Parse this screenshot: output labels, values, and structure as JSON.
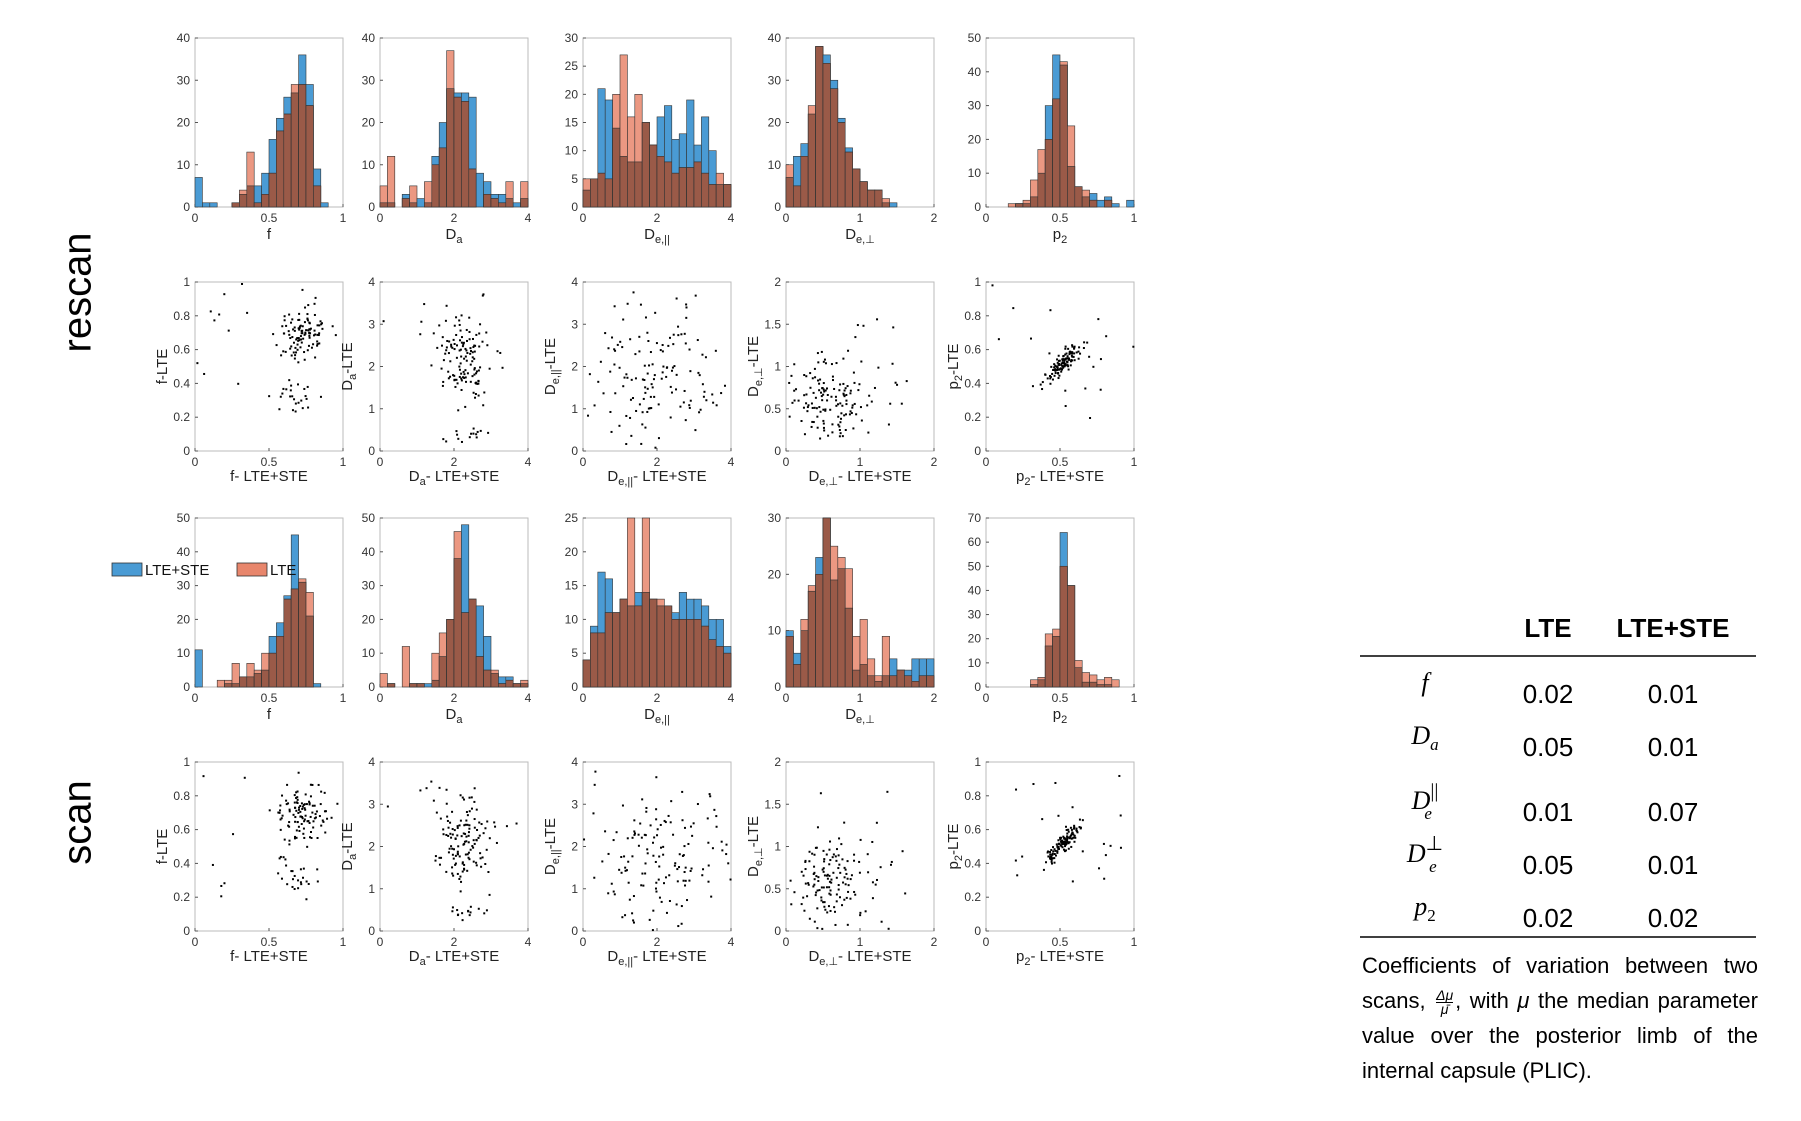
{
  "row_labels": {
    "rescan": "rescan",
    "scan": "scan"
  },
  "legend": [
    {
      "label": "LTE+STE",
      "color": "#4a9bd4"
    },
    {
      "label": "LTE",
      "color": "#e8866c"
    }
  ],
  "colors": {
    "ste": "#4a9bd4",
    "lte": "#e8866c",
    "overlap": "#9a5a48"
  },
  "table": {
    "headers": [
      "LTE",
      "LTE+STE"
    ],
    "rows": [
      {
        "param": "f",
        "lte": "0.02",
        "ste": "0.01"
      },
      {
        "param": "D_a",
        "lte": "0.05",
        "ste": "0.01"
      },
      {
        "param": "D_e^||",
        "lte": "0.01",
        "ste": "0.07"
      },
      {
        "param": "D_e^⊥",
        "lte": "0.05",
        "ste": "0.01"
      },
      {
        "param": "p_2",
        "lte": "0.02",
        "ste": "0.02"
      }
    ]
  },
  "caption": {
    "part1": "Coefficients of variation between two scans,",
    "part2": ", with",
    "part3": "the median parameter value over the posterior limb of the internal capsule (PLIC).",
    "frac_num": "Δμ",
    "frac_den": "μ̄",
    "mu": "μ"
  },
  "chart_data": [
    {
      "type": "bar",
      "group": "rescan",
      "param": "f",
      "xlabel": "f",
      "xlim": [
        0,
        1
      ],
      "ylim": [
        0,
        40
      ],
      "xticks": [
        0,
        0.5,
        1
      ],
      "yticks": [
        0,
        10,
        20,
        30,
        40
      ],
      "bins": 20,
      "series": [
        {
          "name": "LTE+STE",
          "values": [
            7,
            1,
            1,
            0,
            0,
            1,
            3,
            5,
            5,
            8,
            16,
            21,
            26,
            27,
            36,
            29,
            9,
            1,
            0,
            0
          ]
        },
        {
          "name": "LTE",
          "values": [
            0,
            0,
            0,
            0,
            0,
            1,
            4,
            13,
            1,
            3,
            8,
            18,
            22,
            29,
            29,
            24,
            5,
            0,
            0,
            0
          ]
        }
      ]
    },
    {
      "type": "bar",
      "group": "rescan",
      "param": "Da",
      "xlabel": "D_a",
      "xlim": [
        0,
        4
      ],
      "ylim": [
        0,
        40
      ],
      "xticks": [
        0,
        2,
        4
      ],
      "yticks": [
        0,
        10,
        20,
        30,
        40
      ],
      "bins": 20,
      "series": [
        {
          "name": "LTE+STE",
          "values": [
            1,
            1,
            0,
            3,
            1,
            2,
            1,
            12,
            20,
            28,
            27,
            27,
            26,
            8,
            6,
            3,
            3,
            2,
            1,
            2
          ]
        },
        {
          "name": "LTE",
          "values": [
            5,
            12,
            0,
            2,
            5,
            0,
            6,
            10,
            14,
            37,
            26,
            25,
            9,
            0,
            3,
            2,
            1,
            6,
            0,
            6
          ]
        }
      ]
    },
    {
      "type": "bar",
      "group": "rescan",
      "param": "De_par",
      "xlabel": "D_e,||",
      "xlim": [
        0,
        4
      ],
      "ylim": [
        0,
        30
      ],
      "xticks": [
        0,
        2,
        4
      ],
      "yticks": [
        0,
        5,
        10,
        15,
        20,
        25,
        30
      ],
      "bins": 20,
      "series": [
        {
          "name": "LTE+STE",
          "values": [
            3,
            5,
            21,
            19,
            14,
            9,
            8,
            8,
            15,
            11,
            16,
            18,
            12,
            13,
            19,
            11,
            16,
            10,
            4,
            4
          ]
        },
        {
          "name": "LTE",
          "values": [
            5,
            5,
            6,
            5,
            20,
            27,
            16,
            20,
            15,
            11,
            9,
            8,
            6,
            7,
            7,
            8,
            6,
            4,
            6,
            4
          ]
        }
      ]
    },
    {
      "type": "bar",
      "group": "rescan",
      "param": "De_perp",
      "xlabel": "D_e,⊥",
      "xlim": [
        0,
        2
      ],
      "ylim": [
        0,
        40
      ],
      "xticks": [
        0,
        1,
        2
      ],
      "yticks": [
        0,
        10,
        20,
        30,
        40
      ],
      "bins": 20,
      "series": [
        {
          "name": "LTE+STE",
          "values": [
            7,
            12,
            15,
            22,
            38,
            36,
            30,
            21,
            14,
            9,
            6,
            4,
            4,
            1,
            1,
            0,
            0,
            0,
            0,
            0
          ]
        },
        {
          "name": "LTE",
          "values": [
            10,
            5,
            12,
            24,
            38,
            34,
            28,
            20,
            13,
            9,
            6,
            4,
            4,
            2,
            0,
            0,
            0,
            0,
            0,
            0
          ]
        }
      ]
    },
    {
      "type": "bar",
      "group": "rescan",
      "param": "p2",
      "xlabel": "p_2",
      "xlim": [
        0,
        1
      ],
      "ylim": [
        0,
        50
      ],
      "xticks": [
        0,
        0.5,
        1
      ],
      "yticks": [
        0,
        10,
        20,
        30,
        40,
        50
      ],
      "bins": 20,
      "series": [
        {
          "name": "LTE+STE",
          "values": [
            0,
            0,
            0,
            0,
            1,
            1,
            3,
            10,
            30,
            45,
            42,
            12,
            6,
            3,
            4,
            2,
            3,
            1,
            0,
            2
          ]
        },
        {
          "name": "LTE",
          "values": [
            0,
            0,
            0,
            1,
            1,
            2,
            8,
            17,
            20,
            32,
            43,
            24,
            6,
            5,
            2,
            0,
            2,
            0,
            0,
            0
          ]
        }
      ]
    },
    {
      "type": "bar",
      "group": "scan",
      "param": "f",
      "xlabel": "f",
      "xlim": [
        0,
        1
      ],
      "ylim": [
        0,
        50
      ],
      "xticks": [
        0,
        0.5,
        1
      ],
      "yticks": [
        0,
        10,
        20,
        30,
        40,
        50
      ],
      "bins": 20,
      "series": [
        {
          "name": "LTE+STE",
          "values": [
            11,
            0,
            0,
            0,
            1,
            1,
            3,
            3,
            4,
            5,
            15,
            19,
            27,
            45,
            31,
            21,
            1,
            0,
            0,
            0
          ]
        },
        {
          "name": "LTE",
          "values": [
            0,
            0,
            0,
            2,
            2,
            7,
            3,
            7,
            5,
            10,
            10,
            15,
            26,
            29,
            32,
            28,
            0,
            0,
            0,
            0
          ]
        }
      ]
    },
    {
      "type": "bar",
      "group": "scan",
      "param": "Da",
      "xlabel": "D_a",
      "xlim": [
        0,
        4
      ],
      "ylim": [
        0,
        50
      ],
      "xticks": [
        0,
        2,
        4
      ],
      "yticks": [
        0,
        10,
        20,
        30,
        40,
        50
      ],
      "bins": 20,
      "series": [
        {
          "name": "LTE+STE",
          "values": [
            0,
            1,
            0,
            0,
            1,
            1,
            1,
            2,
            9,
            20,
            38,
            48,
            26,
            24,
            15,
            4,
            3,
            3,
            1,
            1
          ]
        },
        {
          "name": "LTE",
          "values": [
            4,
            1,
            0,
            12,
            1,
            1,
            0,
            10,
            16,
            20,
            46,
            22,
            26,
            9,
            5,
            5,
            1,
            2,
            1,
            2
          ]
        }
      ]
    },
    {
      "type": "bar",
      "group": "scan",
      "param": "De_par",
      "xlabel": "D_e,||",
      "xlim": [
        0,
        4
      ],
      "ylim": [
        0,
        25
      ],
      "xticks": [
        0,
        2,
        4
      ],
      "yticks": [
        0,
        5,
        10,
        15,
        20,
        25
      ],
      "bins": 20,
      "series": [
        {
          "name": "LTE+STE",
          "values": [
            4,
            9,
            17,
            16,
            11,
            13,
            12,
            14,
            14,
            13,
            12,
            12,
            11,
            14,
            13,
            13,
            12,
            10,
            10,
            6
          ]
        },
        {
          "name": "LTE",
          "values": [
            4,
            8,
            8,
            11,
            11,
            13,
            26,
            12,
            26,
            13,
            13,
            12,
            10,
            10,
            10,
            10,
            9,
            7,
            6,
            5
          ]
        }
      ]
    },
    {
      "type": "bar",
      "group": "scan",
      "param": "De_perp",
      "xlabel": "D_e,⊥",
      "xlim": [
        0,
        2
      ],
      "ylim": [
        0,
        30
      ],
      "xticks": [
        0,
        1,
        2
      ],
      "yticks": [
        0,
        10,
        20,
        30
      ],
      "bins": 20,
      "series": [
        {
          "name": "LTE+STE",
          "values": [
            10,
            6,
            10,
            17,
            23,
            30,
            19,
            21,
            14,
            3,
            4,
            2,
            1,
            2,
            5,
            3,
            3,
            5,
            5,
            5
          ]
        },
        {
          "name": "LTE",
          "values": [
            9,
            4,
            12,
            18,
            20,
            30,
            25,
            23,
            21,
            9,
            12,
            5,
            2,
            9,
            2,
            3,
            2,
            1,
            2,
            2
          ]
        }
      ]
    },
    {
      "type": "bar",
      "group": "scan",
      "param": "p2",
      "xlabel": "p_2",
      "xlim": [
        0,
        1
      ],
      "ylim": [
        0,
        70
      ],
      "xticks": [
        0,
        0.5,
        1
      ],
      "yticks": [
        0,
        10,
        20,
        30,
        40,
        50,
        60,
        70
      ],
      "bins": 20,
      "series": [
        {
          "name": "LTE+STE",
          "values": [
            0,
            0,
            0,
            0,
            0,
            0,
            1,
            3,
            17,
            21,
            64,
            42,
            8,
            2,
            2,
            1,
            1,
            0,
            0,
            0
          ]
        },
        {
          "name": "LTE",
          "values": [
            0,
            0,
            0,
            0,
            0,
            0,
            3,
            4,
            22,
            24,
            50,
            42,
            11,
            6,
            5,
            3,
            4,
            3,
            0,
            0
          ]
        }
      ]
    },
    {
      "type": "scatter",
      "group": "rescan",
      "param": "f",
      "xlabel": "f- LTE+STE",
      "ylabel": "f-LTE",
      "xlim": [
        0,
        1
      ],
      "ylim": [
        0,
        1
      ],
      "xticks": [
        0,
        0.5,
        1
      ],
      "yticks": [
        0,
        0.2,
        0.4,
        0.6,
        0.8,
        1
      ],
      "points": "see script: ~150 points clustered around (0.72, 0.70) with a low cluster near (0.70, 0.30)"
    },
    {
      "type": "scatter",
      "group": "rescan",
      "param": "Da",
      "xlabel": "D_a- LTE+STE",
      "ylabel": "D_a-LTE",
      "xlim": [
        0,
        4
      ],
      "ylim": [
        0,
        4
      ],
      "xticks": [
        0,
        2,
        4
      ],
      "yticks": [
        0,
        1,
        2,
        3,
        4
      ],
      "points": "~150 points centred near (2.3, 2.1)"
    },
    {
      "type": "scatter",
      "group": "rescan",
      "param": "De_par",
      "xlabel": "D_e,||- LTE+STE",
      "ylabel": "D_e,||-LTE",
      "xlim": [
        0,
        4
      ],
      "ylim": [
        0,
        4
      ],
      "xticks": [
        0,
        2,
        4
      ],
      "yticks": [
        0,
        1,
        2,
        3,
        4
      ],
      "points": "~150 widely scattered points"
    },
    {
      "type": "scatter",
      "group": "rescan",
      "param": "De_perp",
      "xlabel": "D_e,⊥- LTE+STE",
      "ylabel": "D_e,⊥-LTE",
      "xlim": [
        0,
        2
      ],
      "ylim": [
        0,
        2
      ],
      "xticks": [
        0,
        1,
        2
      ],
      "yticks": [
        0,
        0.5,
        1,
        1.5,
        2
      ],
      "points": "~150 points along diagonal near (0.6, 0.6)"
    },
    {
      "type": "scatter",
      "group": "rescan",
      "param": "p2",
      "xlabel": "p_2- LTE+STE",
      "ylabel": "p_2-LTE",
      "xlim": [
        0,
        1
      ],
      "ylim": [
        0,
        1
      ],
      "xticks": [
        0,
        0.5,
        1
      ],
      "yticks": [
        0,
        0.2,
        0.4,
        0.6,
        0.8,
        1
      ],
      "points": "~150 points tight along diagonal near (0.52, 0.52)"
    },
    {
      "type": "scatter",
      "group": "scan",
      "param": "f",
      "xlabel": "f- LTE+STE",
      "ylabel": "f-LTE",
      "xlim": [
        0,
        1
      ],
      "ylim": [
        0,
        1
      ],
      "xticks": [
        0,
        0.5,
        1
      ],
      "yticks": [
        0,
        0.2,
        0.4,
        0.6,
        0.8,
        1
      ],
      "points": "~150 points clustered near (0.75, 0.75)"
    },
    {
      "type": "scatter",
      "group": "scan",
      "param": "Da",
      "xlabel": "D_a- LTE+STE",
      "ylabel": "D_a-LTE",
      "xlim": [
        0,
        4
      ],
      "ylim": [
        0,
        4
      ],
      "xticks": [
        0,
        2,
        4
      ],
      "yticks": [
        0,
        1,
        2,
        3,
        4
      ],
      "points": "~150 points centred near (2.3, 2.3)"
    },
    {
      "type": "scatter",
      "group": "scan",
      "param": "De_par",
      "xlabel": "D_e,||- LTE+STE",
      "ylabel": "D_e,||-LTE",
      "xlim": [
        0,
        4
      ],
      "ylim": [
        0,
        4
      ],
      "xticks": [
        0,
        2,
        4
      ],
      "yticks": [
        0,
        1,
        2,
        3,
        4
      ],
      "points": "~150 widely scattered points"
    },
    {
      "type": "scatter",
      "group": "scan",
      "param": "De_perp",
      "xlabel": "D_e,⊥- LTE+STE",
      "ylabel": "D_e,⊥-LTE",
      "xlim": [
        0,
        2
      ],
      "ylim": [
        0,
        2
      ],
      "xticks": [
        0,
        1,
        2
      ],
      "yticks": [
        0,
        0.5,
        1,
        1.5,
        2
      ],
      "points": "~150 points along diagonal near (0.7, 0.7)"
    },
    {
      "type": "scatter",
      "group": "scan",
      "param": "p2",
      "xlabel": "p_2- LTE+STE",
      "ylabel": "p_2-LTE",
      "xlim": [
        0,
        1
      ],
      "ylim": [
        0,
        1
      ],
      "xticks": [
        0,
        0.5,
        1
      ],
      "yticks": [
        0,
        0.2,
        0.4,
        0.6,
        0.8,
        1
      ],
      "points": "~150 points tight along diagonal near (0.53, 0.53)"
    }
  ]
}
